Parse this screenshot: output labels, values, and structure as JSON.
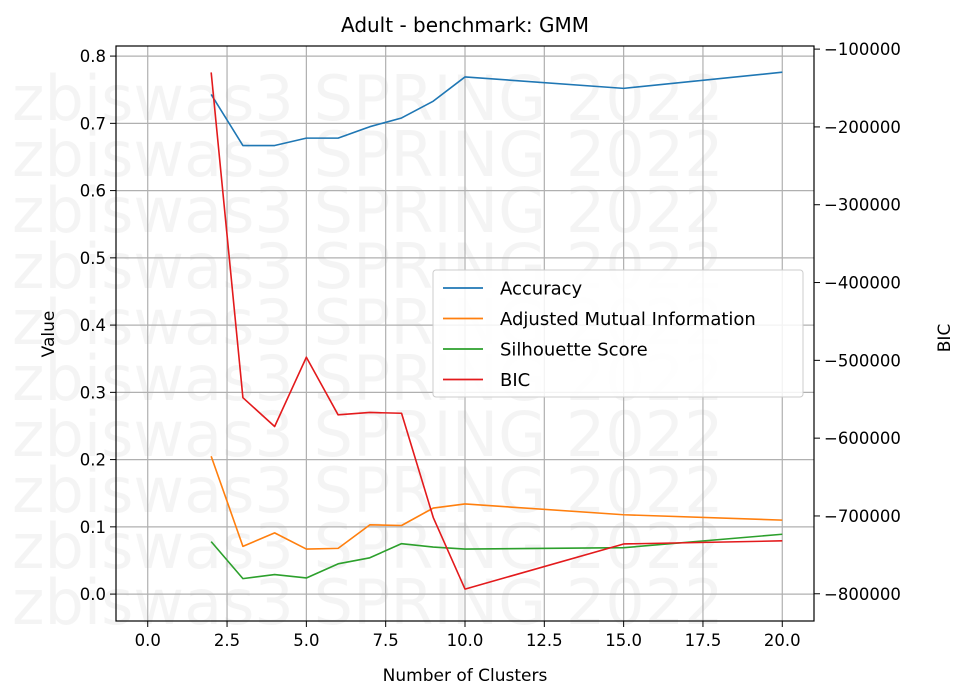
{
  "watermark": {
    "text": "zbiswas3 SPRING 2022",
    "repeat": 10
  },
  "chart_data": {
    "type": "line",
    "title": "Adult - benchmark: GMM",
    "xlabel": "Number of Clusters",
    "ylabel": "Value",
    "y2label": "BIC",
    "xlim": [
      -1.0,
      21.0
    ],
    "ylim": [
      -0.04,
      0.815
    ],
    "y2lim": [
      -835000,
      -96000
    ],
    "xticks": [
      0.0,
      2.5,
      5.0,
      7.5,
      10.0,
      12.5,
      15.0,
      17.5,
      20.0
    ],
    "xtick_labels": [
      "0.0",
      "2.5",
      "5.0",
      "7.5",
      "10.0",
      "12.5",
      "15.0",
      "17.5",
      "20.0"
    ],
    "yticks": [
      0.0,
      0.1,
      0.2,
      0.3,
      0.4,
      0.5,
      0.6,
      0.7,
      0.8
    ],
    "ytick_labels": [
      "0.0",
      "0.1",
      "0.2",
      "0.3",
      "0.4",
      "0.5",
      "0.6",
      "0.7",
      "0.8"
    ],
    "y2ticks": [
      -800000,
      -700000,
      -600000,
      -500000,
      -400000,
      -300000,
      -200000,
      -100000
    ],
    "y2tick_labels": [
      "−800000",
      "−700000",
      "−600000",
      "−500000",
      "−400000",
      "−300000",
      "−200000",
      "−100000"
    ],
    "grid": true,
    "legend_position": "center-right",
    "x": [
      2,
      3,
      4,
      5,
      6,
      7,
      8,
      9,
      10,
      15,
      20
    ],
    "series": [
      {
        "name": "Accuracy",
        "axis": "left",
        "color": "#1f77b4",
        "values": [
          0.743,
          0.667,
          0.667,
          0.678,
          0.678,
          0.695,
          0.708,
          0.733,
          0.769,
          0.752,
          0.776
        ]
      },
      {
        "name": "Adjusted Mutual Information",
        "axis": "left",
        "color": "#ff7f0e",
        "values": [
          0.205,
          0.071,
          0.091,
          0.067,
          0.068,
          0.103,
          0.102,
          0.128,
          0.134,
          0.118,
          0.11
        ]
      },
      {
        "name": "Silhouette Score",
        "axis": "left",
        "color": "#2ca02c",
        "values": [
          0.078,
          0.023,
          0.029,
          0.024,
          0.045,
          0.054,
          0.075,
          0.07,
          0.067,
          0.069,
          0.089
        ]
      },
      {
        "name": "BIC",
        "axis": "right",
        "color": "#e31a1c",
        "values": [
          -130000,
          -548000,
          -585000,
          -496000,
          -570000,
          -567000,
          -568000,
          -702000,
          -794000,
          -736000,
          -732000
        ]
      }
    ]
  }
}
